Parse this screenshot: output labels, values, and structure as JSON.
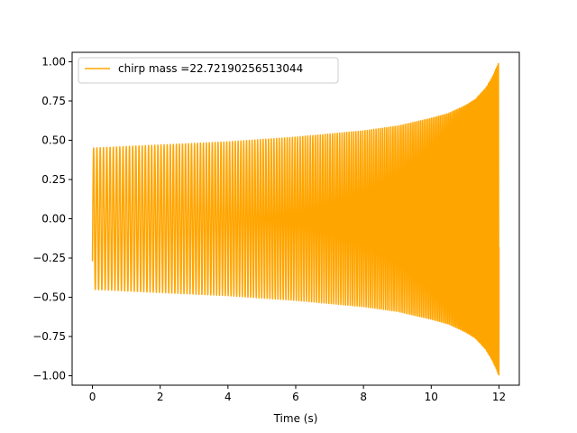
{
  "chart_data": {
    "type": "line",
    "title": "",
    "xlabel": "Time (s)",
    "ylabel": "",
    "xlim": [
      -0.6,
      12.6
    ],
    "ylim": [
      -1.06,
      1.06
    ],
    "xticks": [
      0,
      2,
      4,
      6,
      8,
      10,
      12
    ],
    "xtick_labels": [
      "0",
      "2",
      "4",
      "6",
      "8",
      "10",
      "12"
    ],
    "yticks": [
      -1.0,
      -0.75,
      -0.5,
      -0.25,
      0.0,
      0.25,
      0.5,
      0.75,
      1.0
    ],
    "ytick_labels": [
      "−1.00",
      "−0.75",
      "−0.50",
      "−0.25",
      "0.00",
      "0.25",
      "0.50",
      "0.75",
      "1.00"
    ],
    "grid": false,
    "legend_position": "top-left",
    "series": [
      {
        "name": "chirp mass =22.72190256513044",
        "color": "#ffa500",
        "x_start": 0,
        "x_end": 12,
        "start_value": -0.27,
        "end_value": -0.18,
        "envelope": {
          "x": [
            0,
            2,
            4,
            6,
            8,
            9,
            10,
            10.5,
            11,
            11.3,
            11.6,
            11.8,
            12
          ],
          "amplitude": [
            0.45,
            0.47,
            0.49,
            0.52,
            0.56,
            0.59,
            0.64,
            0.67,
            0.72,
            0.76,
            0.83,
            0.9,
            1.0
          ]
        },
        "visible_cycles": 180
      }
    ]
  }
}
